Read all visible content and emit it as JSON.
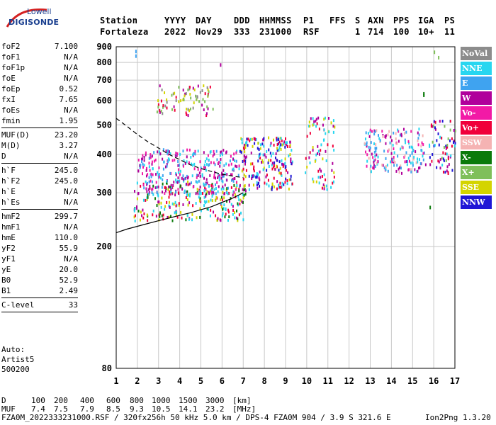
{
  "logo": {
    "line1": "Lowell",
    "line2": "DIGISONDE"
  },
  "header": {
    "row1": [
      "Station",
      "YYYY",
      "DAY",
      "DDD",
      "HHMMSS",
      "P1",
      "FFS",
      "S",
      "AXN",
      "PPS",
      "IGA",
      "PS"
    ],
    "row2": [
      "Fortaleza",
      "2022",
      "Nov29",
      "333",
      "231000",
      "RSF",
      "1",
      "714",
      "100",
      "10+",
      "11"
    ]
  },
  "params": {
    "group1": [
      {
        "k": "foF2",
        "v": "7.100"
      },
      {
        "k": "foF1",
        "v": "N/A"
      },
      {
        "k": "foF1p",
        "v": "N/A"
      },
      {
        "k": "foE",
        "v": "N/A"
      },
      {
        "k": "foEp",
        "v": "0.52"
      },
      {
        "k": "fxI",
        "v": "7.65"
      },
      {
        "k": "foEs",
        "v": "N/A"
      },
      {
        "k": "fmin",
        "v": "1.95"
      }
    ],
    "group2": [
      {
        "k": "MUF(D)",
        "v": "23.20"
      },
      {
        "k": "M(D)",
        "v": "3.27"
      },
      {
        "k": "D",
        "v": "N/A"
      }
    ],
    "group3": [
      {
        "k": "h`F",
        "v": "245.0"
      },
      {
        "k": "h`F2",
        "v": "245.0"
      },
      {
        "k": "h`E",
        "v": "N/A"
      },
      {
        "k": "h`Es",
        "v": "N/A"
      }
    ],
    "group4": [
      {
        "k": "hmF2",
        "v": "299.7"
      },
      {
        "k": "hmF1",
        "v": "N/A"
      },
      {
        "k": "hmE",
        "v": "110.0"
      },
      {
        "k": "yF2",
        "v": "55.9"
      },
      {
        "k": "yF1",
        "v": "N/A"
      },
      {
        "k": "yE",
        "v": "20.0"
      },
      {
        "k": "B0",
        "v": "52.9"
      },
      {
        "k": "B1",
        "v": "2.49"
      }
    ],
    "group5": [
      {
        "k": "C-level",
        "v": "33"
      }
    ]
  },
  "auto": {
    "line1": "Auto:",
    "line2": "Artist5",
    "line3": "500200"
  },
  "footer": {
    "d_label": "D",
    "d_values": [
      "100",
      "200",
      "400",
      "600",
      "800",
      "1000",
      "1500",
      "3000",
      "[km]"
    ],
    "muf_label": "MUF",
    "muf_values": [
      "7.4",
      "7.5",
      "7.9",
      "8.5",
      "9.3",
      "10.5",
      "14.1",
      "23.2",
      "[MHz]"
    ],
    "file_line": "FZA0M_2022333231000.RSF / 320fx256h 50 kHz 5.0 km / DPS-4 FZA0M 904 / 3.9 S 321.6 E",
    "version": "Ion2Png 1.3.20"
  },
  "legend": [
    {
      "label": "NoVal",
      "color": "#8c8c8c"
    },
    {
      "label": "NNE",
      "color": "#27d6f0"
    },
    {
      "label": "E",
      "color": "#3fa3f0"
    },
    {
      "label": "W",
      "color": "#b0009b"
    },
    {
      "label": "Vo-",
      "color": "#f21aa6"
    },
    {
      "label": "Vo+",
      "color": "#f0003a"
    },
    {
      "label": "SSW",
      "color": "#f5b3b3"
    },
    {
      "label": "X-",
      "color": "#0a7a0a"
    },
    {
      "label": "X+",
      "color": "#7fbf5a"
    },
    {
      "label": "SSE",
      "color": "#d4d400"
    },
    {
      "label": "NNW",
      "color": "#1f16d6"
    }
  ],
  "chart_data": {
    "type": "scatter",
    "title": "",
    "xlabel": "",
    "ylabel": "",
    "xlim": [
      1,
      17
    ],
    "ylim": [
      80,
      900
    ],
    "y_scale": "log",
    "x_ticks": [
      "1",
      "2",
      "3",
      "4",
      "5",
      "6",
      "7",
      "8",
      "9",
      "10",
      "11",
      "12",
      "13",
      "14",
      "15",
      "16",
      "17"
    ],
    "y_ticks": [
      "80",
      "200",
      "300",
      "400",
      "500",
      "600",
      "700",
      "800",
      "900"
    ],
    "grid": true,
    "traces": [
      {
        "name": "",
        "style": "dashed",
        "x": [
          1.0,
          1.5,
          2.0,
          2.5,
          3.0,
          3.5,
          4.0,
          4.5,
          5.0,
          5.5,
          6.0,
          6.5,
          7.0
        ],
        "y": [
          525,
          495,
          465,
          440,
          420,
          400,
          385,
          370,
          360,
          352,
          345,
          340,
          336
        ]
      },
      {
        "name": "",
        "style": "solid",
        "x": [
          1.0,
          1.5,
          2.0,
          2.5,
          3.0,
          3.5,
          4.0,
          4.5,
          5.0,
          5.5,
          6.0,
          6.5,
          7.0
        ],
        "y": [
          222,
          228,
          233,
          238,
          243,
          248,
          253,
          258,
          264,
          270,
          279,
          288,
          300
        ]
      }
    ],
    "clusters": [
      {
        "x": [
          1.8,
          7.1
        ],
        "y": [
          245,
          330
        ],
        "colors": [
          "#f0003a",
          "#b0009b",
          "#27d6f0",
          "#0a7a0a",
          "#d4d400"
        ],
        "n": 260
      },
      {
        "x": [
          2.0,
          6.8
        ],
        "y": [
          300,
          420
        ],
        "colors": [
          "#b0009b",
          "#f21aa6",
          "#27d6f0",
          "#3fa3f0"
        ],
        "n": 320
      },
      {
        "x": [
          2.9,
          5.6
        ],
        "y": [
          540,
          680
        ],
        "colors": [
          "#f0003a",
          "#d4d400",
          "#7fbf5a",
          "#b0009b",
          "#8c8c8c"
        ],
        "n": 80
      },
      {
        "x": [
          6.8,
          9.3
        ],
        "y": [
          310,
          460
        ],
        "colors": [
          "#27d6f0",
          "#b0009b",
          "#f0003a",
          "#d4d400",
          "#1f16d6"
        ],
        "n": 220
      },
      {
        "x": [
          9.9,
          11.3
        ],
        "y": [
          310,
          540
        ],
        "colors": [
          "#b0009b",
          "#f0003a",
          "#27d6f0",
          "#d4d400"
        ],
        "n": 80
      },
      {
        "x": [
          12.7,
          15.6
        ],
        "y": [
          350,
          490
        ],
        "colors": [
          "#27d6f0",
          "#b0009b",
          "#f21aa6",
          "#f5b3b3",
          "#3fa3f0"
        ],
        "n": 180
      },
      {
        "x": [
          15.7,
          17.0
        ],
        "y": [
          350,
          520
        ],
        "colors": [
          "#b0009b",
          "#f0003a",
          "#27d6f0",
          "#7fbf5a",
          "#1f16d6"
        ],
        "n": 70
      }
    ],
    "isolated_points": [
      {
        "x": 1.9,
        "y": 880,
        "color": "#3fa3f0"
      },
      {
        "x": 1.9,
        "y": 850,
        "color": "#3fa3f0"
      },
      {
        "x": 5.9,
        "y": 795,
        "color": "#b0009b"
      },
      {
        "x": 15.5,
        "y": 640,
        "color": "#0a7a0a"
      },
      {
        "x": 15.5,
        "y": 633,
        "color": "#0a7a0a"
      },
      {
        "x": 16.0,
        "y": 875,
        "color": "#7fbf5a"
      },
      {
        "x": 16.2,
        "y": 840,
        "color": "#7fbf5a"
      },
      {
        "x": 15.8,
        "y": 272,
        "color": "#0a7a0a"
      }
    ]
  }
}
